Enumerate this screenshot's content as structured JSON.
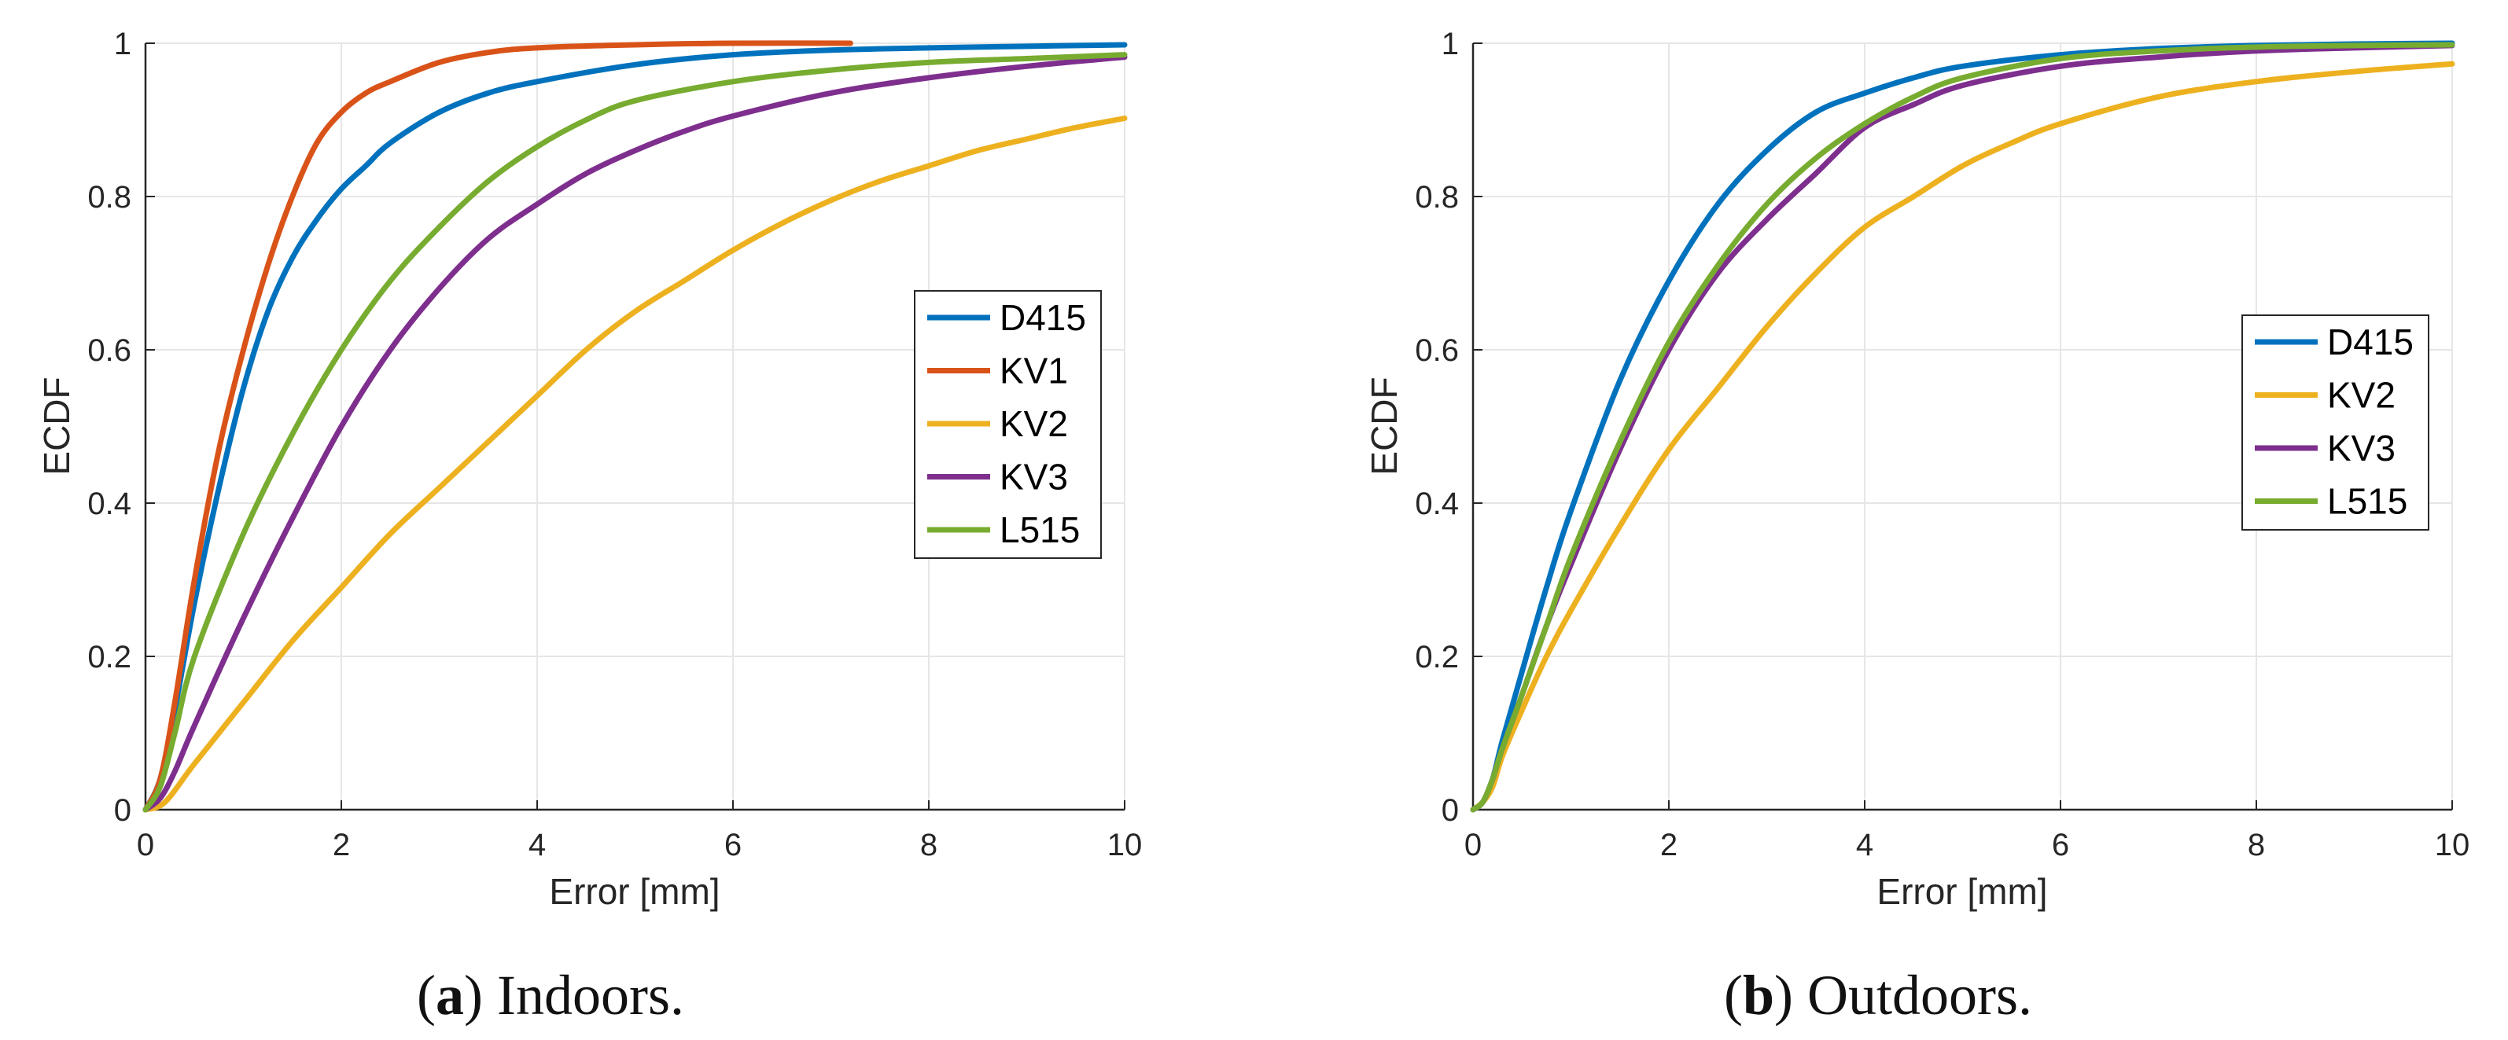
{
  "chart_data": [
    {
      "type": "line",
      "caption_letter": "a",
      "caption_text": "Indoors.",
      "xlabel": "Error [mm]",
      "ylabel": "ECDF",
      "xlim": [
        0,
        10
      ],
      "ylim": [
        0,
        1
      ],
      "xticks": [
        "0",
        "2",
        "4",
        "6",
        "8",
        "10"
      ],
      "yticks": [
        "0",
        "0.2",
        "0.4",
        "0.6",
        "0.8",
        "1"
      ],
      "grid": true,
      "legend_position": "right",
      "series": [
        {
          "name": "D415",
          "color": "#0072BD",
          "x": [
            0,
            0.15,
            0.3,
            0.5,
            0.75,
            1.0,
            1.25,
            1.5,
            1.75,
            2.0,
            2.25,
            2.5,
            3.0,
            3.5,
            4.0,
            5.0,
            6.0,
            7.0,
            8.0,
            9.0,
            10.0
          ],
          "y": [
            0,
            0.04,
            0.13,
            0.27,
            0.42,
            0.55,
            0.65,
            0.72,
            0.77,
            0.81,
            0.84,
            0.87,
            0.91,
            0.935,
            0.95,
            0.972,
            0.985,
            0.991,
            0.994,
            0.996,
            0.998
          ]
        },
        {
          "name": "KV1",
          "color": "#D95319",
          "x": [
            0,
            0.15,
            0.3,
            0.5,
            0.75,
            1.0,
            1.25,
            1.5,
            1.75,
            2.0,
            2.25,
            2.5,
            3.0,
            3.5,
            4.0,
            5.0,
            6.0,
            7.2
          ],
          "y": [
            0,
            0.04,
            0.14,
            0.3,
            0.47,
            0.6,
            0.71,
            0.8,
            0.87,
            0.91,
            0.935,
            0.95,
            0.975,
            0.988,
            0.994,
            0.998,
            1.0,
            1.0
          ]
        },
        {
          "name": "KV2",
          "color": "#EDB120",
          "x": [
            0,
            0.2,
            0.5,
            1.0,
            1.5,
            2.0,
            2.5,
            3.0,
            3.5,
            4.0,
            4.5,
            5.0,
            5.5,
            6.0,
            6.5,
            7.0,
            7.5,
            8.0,
            8.5,
            9.0,
            9.5,
            10.0
          ],
          "y": [
            0,
            0.01,
            0.06,
            0.14,
            0.22,
            0.29,
            0.36,
            0.42,
            0.48,
            0.54,
            0.6,
            0.65,
            0.69,
            0.73,
            0.765,
            0.795,
            0.82,
            0.84,
            0.86,
            0.875,
            0.89,
            0.902
          ]
        },
        {
          "name": "KV3",
          "color": "#7E2F8E",
          "x": [
            0,
            0.15,
            0.3,
            0.5,
            1.0,
            1.5,
            2.0,
            2.5,
            3.0,
            3.5,
            4.0,
            4.5,
            5.0,
            5.5,
            6.0,
            7.0,
            8.0,
            9.0,
            10.0
          ],
          "y": [
            0,
            0.015,
            0.05,
            0.11,
            0.25,
            0.38,
            0.5,
            0.6,
            0.68,
            0.745,
            0.79,
            0.83,
            0.86,
            0.885,
            0.905,
            0.935,
            0.955,
            0.97,
            0.982
          ]
        },
        {
          "name": "L515",
          "color": "#77AC30",
          "x": [
            0,
            0.15,
            0.3,
            0.5,
            1.0,
            1.5,
            2.0,
            2.5,
            3.0,
            3.5,
            4.0,
            4.5,
            5.0,
            6.0,
            7.0,
            8.0,
            9.0,
            10.0
          ],
          "y": [
            0,
            0.03,
            0.1,
            0.2,
            0.36,
            0.49,
            0.6,
            0.69,
            0.76,
            0.82,
            0.865,
            0.9,
            0.925,
            0.95,
            0.965,
            0.975,
            0.98,
            0.985
          ]
        }
      ]
    },
    {
      "type": "line",
      "caption_letter": "b",
      "caption_text": "Outdoors.",
      "xlabel": "Error [mm]",
      "ylabel": "ECDF",
      "xlim": [
        0,
        10
      ],
      "ylim": [
        0,
        1
      ],
      "xticks": [
        "0",
        "2",
        "4",
        "6",
        "8",
        "10"
      ],
      "yticks": [
        "0",
        "0.2",
        "0.4",
        "0.6",
        "0.8",
        "1"
      ],
      "grid": true,
      "legend_position": "right",
      "series": [
        {
          "name": "D415",
          "color": "#0072BD",
          "x": [
            0,
            0.1,
            0.2,
            0.3,
            0.5,
            0.75,
            1.0,
            1.5,
            2.0,
            2.5,
            3.0,
            3.5,
            4.0,
            4.5,
            5.0,
            6.0,
            7.0,
            8.0,
            9.0,
            10.0
          ],
          "y": [
            0,
            0.01,
            0.04,
            0.09,
            0.18,
            0.29,
            0.39,
            0.56,
            0.69,
            0.79,
            0.86,
            0.91,
            0.935,
            0.955,
            0.97,
            0.985,
            0.993,
            0.997,
            0.999,
            1.0
          ]
        },
        {
          "name": "KV2",
          "color": "#EDB120",
          "x": [
            0,
            0.1,
            0.2,
            0.3,
            0.5,
            0.75,
            1.0,
            1.5,
            2.0,
            2.5,
            3.0,
            3.5,
            4.0,
            4.5,
            5.0,
            5.5,
            6.0,
            7.0,
            8.0,
            9.0,
            10.0
          ],
          "y": [
            0,
            0.01,
            0.03,
            0.07,
            0.13,
            0.2,
            0.26,
            0.37,
            0.47,
            0.55,
            0.63,
            0.7,
            0.76,
            0.8,
            0.84,
            0.87,
            0.895,
            0.93,
            0.95,
            0.963,
            0.973
          ]
        },
        {
          "name": "KV3",
          "color": "#7E2F8E",
          "x": [
            0,
            0.1,
            0.2,
            0.3,
            0.5,
            0.75,
            1.0,
            1.5,
            2.0,
            2.5,
            3.0,
            3.5,
            4.0,
            4.5,
            5.0,
            6.0,
            7.0,
            8.0,
            9.0,
            10.0
          ],
          "y": [
            0,
            0.01,
            0.04,
            0.08,
            0.15,
            0.24,
            0.32,
            0.47,
            0.6,
            0.7,
            0.77,
            0.83,
            0.89,
            0.92,
            0.945,
            0.97,
            0.982,
            0.99,
            0.994,
            0.997
          ]
        },
        {
          "name": "L515",
          "color": "#77AC30",
          "x": [
            0,
            0.1,
            0.2,
            0.3,
            0.5,
            0.75,
            1.0,
            1.5,
            2.0,
            2.5,
            3.0,
            3.5,
            4.0,
            4.5,
            5.0,
            6.0,
            7.0,
            8.0,
            9.0,
            10.0
          ],
          "y": [
            0,
            0.01,
            0.04,
            0.08,
            0.15,
            0.24,
            0.33,
            0.48,
            0.61,
            0.71,
            0.79,
            0.85,
            0.895,
            0.93,
            0.955,
            0.98,
            0.99,
            0.995,
            0.997,
            0.998
          ]
        }
      ]
    }
  ]
}
